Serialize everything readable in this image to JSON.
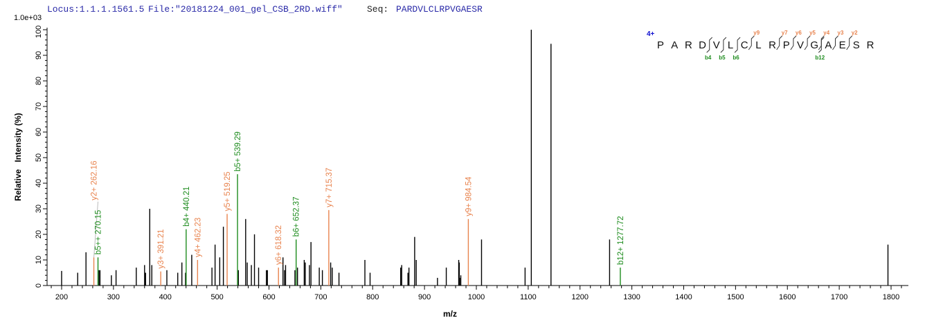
{
  "header": {
    "locus": "Locus:1.1.1.1561.5",
    "file": "File:\"20181224_001_gel_CSB_2RD.wiff\"",
    "seq_label": "Seq:",
    "seq": "PARDVLCLRPVGAESR"
  },
  "colors": {
    "y_ion": "#e8834e",
    "b_ion": "#1e8c1e",
    "unmatched": "#000000",
    "header": "#2a2aa8",
    "charge": "#1010d0"
  },
  "annotation": {
    "charge": "4+",
    "residues": [
      "P",
      "A",
      "R",
      "D",
      "V",
      "L",
      "C",
      "L",
      "R",
      "P",
      "V",
      "G",
      "A",
      "E",
      "S",
      "R"
    ],
    "y_ions": [
      {
        "label": "y9",
        "after": 7
      },
      {
        "label": "y7",
        "after": 9
      },
      {
        "label": "y6",
        "after": 10
      },
      {
        "label": "y5",
        "after": 11
      },
      {
        "label": "y4",
        "after": 12
      },
      {
        "label": "y3",
        "after": 13
      },
      {
        "label": "y2",
        "after": 14
      }
    ],
    "b_ions": [
      {
        "label": "b4",
        "after": 4
      },
      {
        "label": "b5",
        "after": 5
      },
      {
        "label": "b6",
        "after": 6
      },
      {
        "label": "b12",
        "after": 12
      }
    ]
  },
  "chart_data": {
    "type": "bar",
    "title": "",
    "xlabel": "m/z",
    "ylabel": "Relative   Intensity (%)",
    "y_scale_label": "1.0e+03",
    "xlim": [
      172,
      1833
    ],
    "ylim": [
      0,
      100
    ],
    "x_ticks": [
      200,
      300,
      400,
      500,
      600,
      700,
      800,
      900,
      1000,
      1100,
      1200,
      1300,
      1400,
      1500,
      1600,
      1700,
      1800
    ],
    "y_ticks": [
      0,
      10,
      20,
      30,
      40,
      50,
      60,
      70,
      80,
      90,
      100
    ],
    "grid": false,
    "peaks": [
      [
        200,
        5.7
      ],
      [
        231,
        5
      ],
      [
        247,
        13
      ],
      [
        272,
        6
      ],
      [
        274,
        6
      ],
      [
        296,
        4
      ],
      [
        305,
        6
      ],
      [
        344,
        7
      ],
      [
        360,
        8
      ],
      [
        362,
        5
      ],
      [
        370,
        30
      ],
      [
        374,
        8
      ],
      [
        403,
        6
      ],
      [
        424,
        5
      ],
      [
        432,
        9
      ],
      [
        439,
        5
      ],
      [
        451,
        12
      ],
      [
        490,
        7
      ],
      [
        496,
        16
      ],
      [
        505,
        11
      ],
      [
        512,
        23
      ],
      [
        541,
        6
      ],
      [
        555,
        26
      ],
      [
        558,
        9
      ],
      [
        566,
        8
      ],
      [
        572,
        20
      ],
      [
        580,
        7
      ],
      [
        595,
        6
      ],
      [
        597,
        6
      ],
      [
        627,
        11
      ],
      [
        630,
        6
      ],
      [
        632,
        8
      ],
      [
        650,
        6
      ],
      [
        655,
        7
      ],
      [
        668,
        10
      ],
      [
        670,
        9
      ],
      [
        678,
        8
      ],
      [
        681,
        17
      ],
      [
        697,
        7
      ],
      [
        703,
        6
      ],
      [
        719,
        9
      ],
      [
        722,
        7
      ],
      [
        735,
        5
      ],
      [
        785,
        10
      ],
      [
        795,
        5
      ],
      [
        854,
        7
      ],
      [
        856,
        8
      ],
      [
        868,
        5
      ],
      [
        870,
        7
      ],
      [
        881,
        19
      ],
      [
        884,
        10
      ],
      [
        925,
        3
      ],
      [
        942,
        7
      ],
      [
        966,
        10
      ],
      [
        967,
        9
      ],
      [
        968,
        3
      ],
      [
        970,
        4
      ],
      [
        1010,
        18
      ],
      [
        1094,
        7
      ],
      [
        1106,
        100
      ],
      [
        1144,
        94.5
      ],
      [
        1257,
        18
      ],
      [
        1794,
        16
      ]
    ],
    "matched": [
      {
        "label": "y2+ 262.16",
        "mz": 262.16,
        "intensity": 11,
        "type": "y"
      },
      {
        "label": "b5++ 270.15",
        "mz": 270.15,
        "intensity": 11,
        "type": "b"
      },
      {
        "label": "y3+ 391.21",
        "mz": 391.21,
        "intensity": 5.5,
        "type": "y"
      },
      {
        "label": "b4+ 440.21",
        "mz": 440.21,
        "intensity": 22,
        "type": "b"
      },
      {
        "label": "y4+ 462.23",
        "mz": 462.23,
        "intensity": 10,
        "type": "y"
      },
      {
        "label": "y5+ 519.25",
        "mz": 519.25,
        "intensity": 28,
        "type": "y"
      },
      {
        "label": "b5+ 539.29",
        "mz": 539.29,
        "intensity": 43.5,
        "type": "b"
      },
      {
        "label": "y6+ 618.32",
        "mz": 618.32,
        "intensity": 7,
        "type": "y"
      },
      {
        "label": "b6+ 652.37",
        "mz": 652.37,
        "intensity": 18,
        "type": "b"
      },
      {
        "label": "y7+ 715.37",
        "mz": 715.37,
        "intensity": 29.5,
        "type": "y"
      },
      {
        "label": "y9+ 984.54",
        "mz": 984.54,
        "intensity": 26,
        "type": "y"
      },
      {
        "label": "b12+ 1277.72",
        "mz": 1277.72,
        "intensity": 7,
        "type": "b"
      }
    ]
  }
}
